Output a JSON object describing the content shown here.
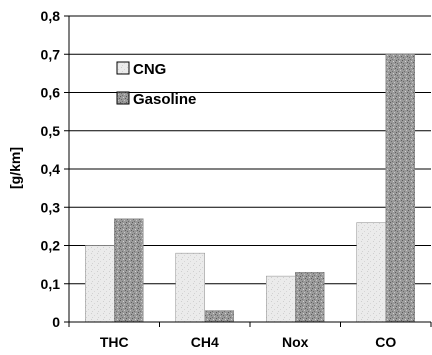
{
  "chart_data": {
    "type": "bar",
    "categories": [
      "THC",
      "CH4",
      "Nox",
      "CO"
    ],
    "series": [
      {
        "name": "CNG",
        "values": [
          0.2,
          0.18,
          0.12,
          0.26
        ],
        "color": "#e6e6e6"
      },
      {
        "name": "Gasoline",
        "values": [
          0.27,
          0.03,
          0.13,
          0.7
        ],
        "color": "#8a8a8a"
      }
    ],
    "ylabel": "[g/km]",
    "ylim": [
      0,
      0.8
    ],
    "yticks": [
      "0",
      "0,1",
      "0,2",
      "0,3",
      "0,4",
      "0,5",
      "0,6",
      "0,7",
      "0,8"
    ],
    "grid": true,
    "legend_position": "top-left"
  }
}
